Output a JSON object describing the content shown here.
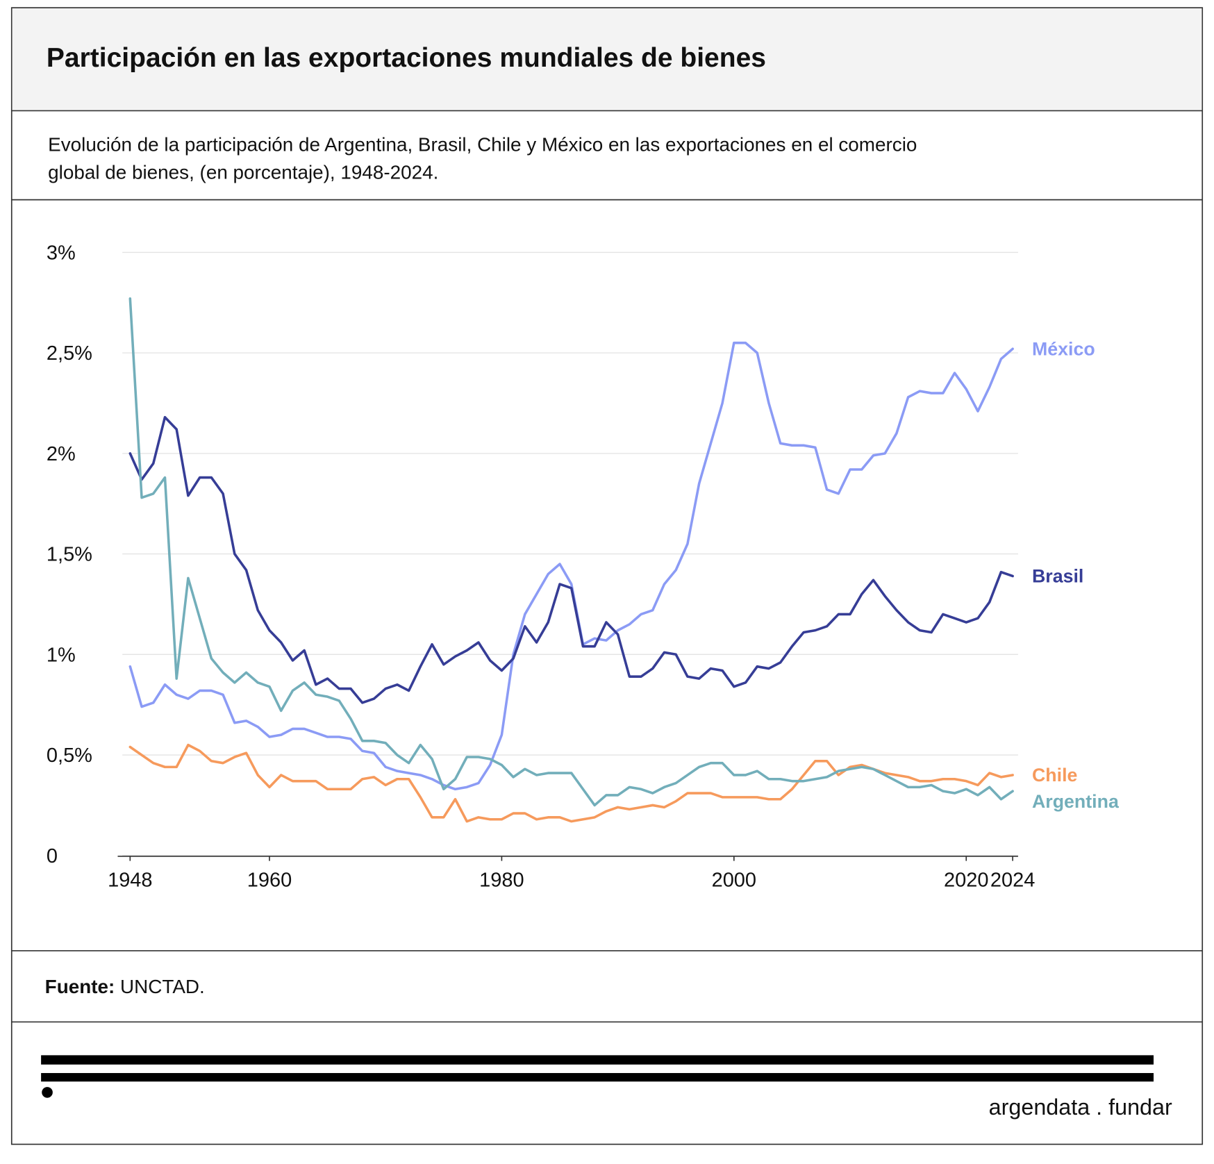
{
  "chart_data": {
    "type": "line",
    "title": "Participación en las exportaciones mundiales de bienes",
    "subtitle": [
      "Evolución de la participación de Argentina, Brasil, Chile y México en las exportaciones en el comercio",
      "global de bienes, (en porcentaje), 1948-2024."
    ],
    "source_label": "Fuente:",
    "source": "UNCTAD.",
    "brand": "argendata . fundar",
    "x": [
      1948,
      1949,
      1950,
      1951,
      1952,
      1953,
      1954,
      1955,
      1956,
      1957,
      1958,
      1959,
      1960,
      1961,
      1962,
      1963,
      1964,
      1965,
      1966,
      1967,
      1968,
      1969,
      1970,
      1971,
      1972,
      1973,
      1974,
      1975,
      1976,
      1977,
      1978,
      1979,
      1980,
      1981,
      1982,
      1983,
      1984,
      1985,
      1986,
      1987,
      1988,
      1989,
      1990,
      1991,
      1992,
      1993,
      1994,
      1995,
      1996,
      1997,
      1998,
      1999,
      2000,
      2001,
      2002,
      2003,
      2004,
      2005,
      2006,
      2007,
      2008,
      2009,
      2010,
      2011,
      2012,
      2013,
      2014,
      2015,
      2016,
      2017,
      2018,
      2019,
      2020,
      2021,
      2022,
      2023,
      2024
    ],
    "xlim": [
      1948,
      2024
    ],
    "xticks": [
      1948,
      1960,
      1980,
      2000,
      2020,
      2024
    ],
    "ylim": [
      0,
      3
    ],
    "yticks": [
      0,
      {
        "value": 0.5,
        "label": "0,5%"
      },
      {
        "value": 1,
        "label": "1%"
      },
      {
        "value": 1.5,
        "label": "1,5%"
      },
      {
        "value": 2,
        "label": "2%"
      },
      {
        "value": 2.5,
        "label": "2,5%"
      },
      {
        "value": 3,
        "label": "3%"
      }
    ],
    "grid": true,
    "series": [
      {
        "name": "México",
        "color": "#8b9bf5",
        "values": [
          0.94,
          0.74,
          0.76,
          0.85,
          0.8,
          0.78,
          0.82,
          0.82,
          0.8,
          0.66,
          0.67,
          0.64,
          0.59,
          0.6,
          0.63,
          0.63,
          0.61,
          0.59,
          0.59,
          0.58,
          0.52,
          0.51,
          0.44,
          0.42,
          0.41,
          0.4,
          0.38,
          0.35,
          0.33,
          0.34,
          0.36,
          0.45,
          0.6,
          1.0,
          1.2,
          1.3,
          1.4,
          1.45,
          1.35,
          1.05,
          1.08,
          1.07,
          1.12,
          1.15,
          1.2,
          1.22,
          1.35,
          1.42,
          1.55,
          1.85,
          2.05,
          2.25,
          2.55,
          2.55,
          2.5,
          2.25,
          2.05,
          2.04,
          2.04,
          2.03,
          1.82,
          1.8,
          1.92,
          1.92,
          1.99,
          2.0,
          2.1,
          2.28,
          2.31,
          2.3,
          2.3,
          2.4,
          2.32,
          2.21,
          2.33,
          2.47,
          2.52
        ]
      },
      {
        "name": "Brasil",
        "color": "#363d96",
        "values": [
          2.0,
          1.87,
          1.95,
          2.18,
          2.12,
          1.79,
          1.88,
          1.88,
          1.8,
          1.5,
          1.42,
          1.22,
          1.12,
          1.06,
          0.97,
          1.02,
          0.85,
          0.88,
          0.83,
          0.83,
          0.76,
          0.78,
          0.83,
          0.85,
          0.82,
          0.94,
          1.05,
          0.95,
          0.99,
          1.02,
          1.06,
          0.97,
          0.92,
          0.98,
          1.14,
          1.06,
          1.16,
          1.35,
          1.33,
          1.04,
          1.04,
          1.16,
          1.1,
          0.89,
          0.89,
          0.93,
          1.01,
          1.0,
          0.89,
          0.88,
          0.93,
          0.92,
          0.84,
          0.86,
          0.94,
          0.93,
          0.96,
          1.04,
          1.11,
          1.12,
          1.14,
          1.2,
          1.2,
          1.3,
          1.37,
          1.29,
          1.22,
          1.16,
          1.12,
          1.11,
          1.2,
          1.18,
          1.16,
          1.18,
          1.26,
          1.41,
          1.39
        ]
      },
      {
        "name": "Chile",
        "color": "#f69a5c",
        "values": [
          0.54,
          0.5,
          0.46,
          0.44,
          0.44,
          0.55,
          0.52,
          0.47,
          0.46,
          0.49,
          0.51,
          0.4,
          0.34,
          0.4,
          0.37,
          0.37,
          0.37,
          0.33,
          0.33,
          0.33,
          0.38,
          0.39,
          0.35,
          0.38,
          0.38,
          0.29,
          0.19,
          0.19,
          0.28,
          0.17,
          0.19,
          0.18,
          0.18,
          0.21,
          0.21,
          0.18,
          0.19,
          0.19,
          0.17,
          0.18,
          0.19,
          0.22,
          0.24,
          0.23,
          0.24,
          0.25,
          0.24,
          0.27,
          0.31,
          0.31,
          0.31,
          0.29,
          0.29,
          0.29,
          0.29,
          0.28,
          0.28,
          0.33,
          0.4,
          0.47,
          0.47,
          0.4,
          0.44,
          0.45,
          0.43,
          0.41,
          0.4,
          0.39,
          0.37,
          0.37,
          0.38,
          0.38,
          0.37,
          0.35,
          0.41,
          0.39,
          0.4
        ]
      },
      {
        "name": "Argentina",
        "color": "#72aeba",
        "values": [
          2.77,
          1.78,
          1.8,
          1.88,
          0.88,
          1.38,
          1.18,
          0.98,
          0.91,
          0.86,
          0.91,
          0.86,
          0.84,
          0.72,
          0.82,
          0.86,
          0.8,
          0.79,
          0.77,
          0.68,
          0.57,
          0.57,
          0.56,
          0.5,
          0.46,
          0.55,
          0.48,
          0.33,
          0.38,
          0.49,
          0.49,
          0.48,
          0.45,
          0.39,
          0.43,
          0.4,
          0.41,
          0.41,
          0.41,
          0.33,
          0.25,
          0.3,
          0.3,
          0.34,
          0.33,
          0.31,
          0.34,
          0.36,
          0.4,
          0.44,
          0.46,
          0.46,
          0.4,
          0.4,
          0.42,
          0.38,
          0.38,
          0.37,
          0.37,
          0.38,
          0.39,
          0.42,
          0.43,
          0.44,
          0.43,
          0.4,
          0.37,
          0.34,
          0.34,
          0.35,
          0.32,
          0.31,
          0.33,
          0.3,
          0.34,
          0.28,
          0.32
        ]
      }
    ]
  }
}
